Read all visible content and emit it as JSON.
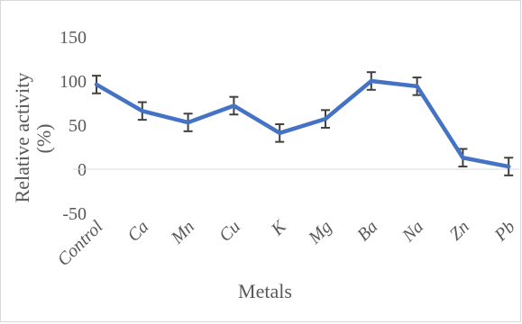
{
  "chart_data": {
    "type": "line",
    "categories": [
      "Control",
      "Ca",
      "Mn",
      "Cu",
      "K",
      "Mg",
      "Ba",
      "Na",
      "Zn",
      "Pb"
    ],
    "series": [
      {
        "values": [
          96,
          66,
          53,
          72,
          41,
          57,
          100,
          94,
          13,
          3
        ],
        "error": [
          10,
          10,
          10,
          10,
          10,
          10,
          10,
          10,
          10,
          10
        ],
        "color": "#4472c4"
      }
    ],
    "yticks": [
      150,
      100,
      50,
      0,
      -50
    ],
    "ylim": [
      -50,
      150
    ],
    "xlabel": "Metals",
    "ylabel_line1": "Relative activity",
    "ylabel_line2": "(%)",
    "grid": false,
    "legend": "none"
  }
}
